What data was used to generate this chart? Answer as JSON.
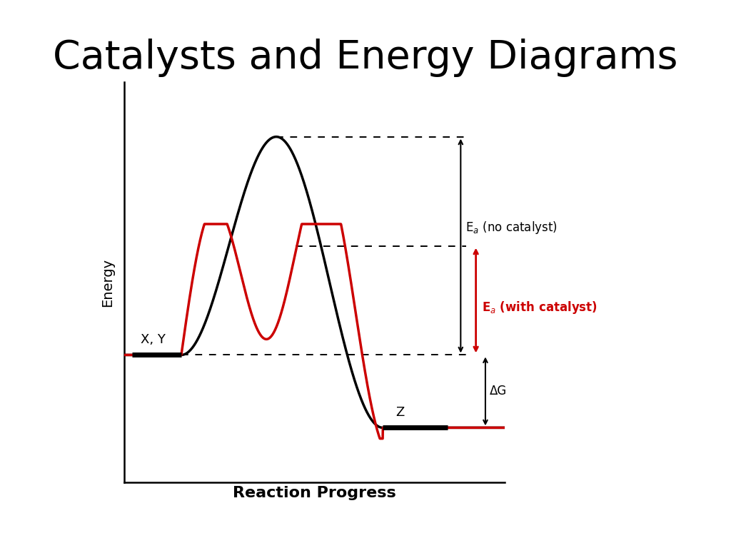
{
  "title": "Catalysts and Energy Diagrams",
  "title_fontsize": 40,
  "xlabel": "Reaction Progress",
  "ylabel": "Energy",
  "xlabel_fontsize": 16,
  "ylabel_fontsize": 14,
  "background_color": "#ffffff",
  "black_curve_color": "#000000",
  "red_curve_color": "#cc0000",
  "label_XY": "X, Y",
  "label_Z": "Z",
  "label_Ea_no_cat": "E$_a$ (no catalyst)",
  "label_Ea_with_cat": "E$_a$ (with catalyst)",
  "label_dG": "ΔG",
  "reactant_level": 3.5,
  "product_level": 1.5,
  "black_peak": 9.5,
  "red_peak": 6.5,
  "xmin": 0,
  "xmax": 10,
  "ymin": 0,
  "ymax": 11
}
